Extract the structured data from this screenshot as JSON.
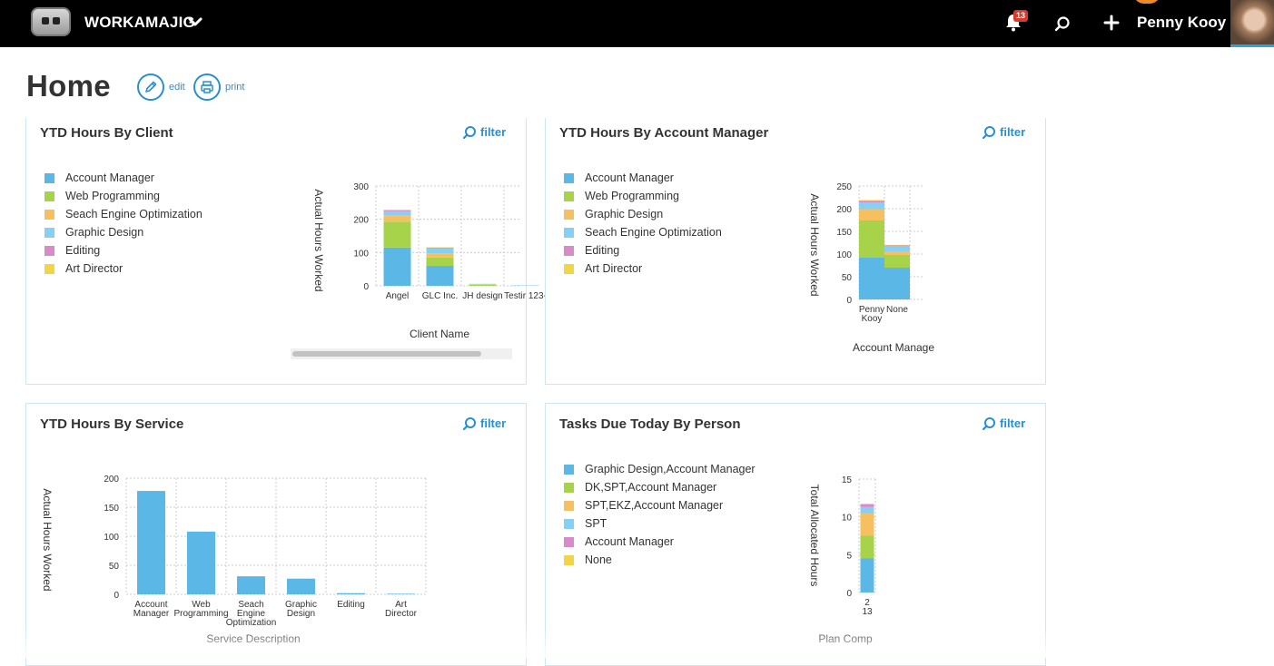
{
  "app": {
    "brand": "WORKAMAJIG",
    "notifications_count": "13",
    "user_name": "Penny Kooy"
  },
  "page": {
    "title": "Home",
    "edit_label": "edit",
    "print_label": "print"
  },
  "colors": {
    "accent": "#2a8fd0",
    "series": [
      "#5ab7e6",
      "#a6d34a",
      "#f6c060",
      "#86d0f5",
      "#d98ac9",
      "#f2d544"
    ]
  },
  "panels": {
    "client": {
      "title": "YTD Hours By Client",
      "filter_label": "filter",
      "legend": [
        "Account Manager",
        "Web Programming",
        "Seach Engine Optimization",
        "Graphic Design",
        "Editing",
        "Art Director"
      ]
    },
    "account_manager": {
      "title": "YTD Hours By Account Manager",
      "filter_label": "filter",
      "legend": [
        "Account Manager",
        "Web Programming",
        "Graphic Design",
        "Seach Engine Optimization",
        "Editing",
        "Art Director"
      ]
    },
    "service": {
      "title": "YTD Hours By Service",
      "filter_label": "filter"
    },
    "tasks": {
      "title": "Tasks Due Today By Person",
      "filter_label": "filter",
      "legend": [
        "Graphic Design,Account Manager",
        "DK,SPT,Account Manager",
        "SPT,EKZ,Account Manager",
        "SPT",
        "Account Manager",
        "None"
      ]
    }
  },
  "chart_data": [
    {
      "type": "bar",
      "stacked": true,
      "title": "YTD Hours By Client",
      "xlabel": "Client Name",
      "ylabel": "Actual Hours Worked",
      "ylim": [
        0,
        300
      ],
      "yticks": [
        "0",
        "100",
        "200",
        "300"
      ],
      "categories": [
        "Angel",
        "GLC Inc.",
        "JH design",
        "Testir 123-"
      ],
      "series": [
        {
          "name": "Account Manager",
          "values": [
            115,
            60,
            0,
            1
          ]
        },
        {
          "name": "Web Programming",
          "values": [
            78,
            25,
            3,
            0
          ]
        },
        {
          "name": "Seach Engine Optimization",
          "values": [
            18,
            13,
            2,
            0
          ]
        },
        {
          "name": "Graphic Design",
          "values": [
            13,
            15,
            1,
            0
          ]
        },
        {
          "name": "Editing",
          "values": [
            3,
            2,
            0,
            0
          ]
        },
        {
          "name": "Art Director",
          "values": [
            2,
            1,
            0,
            0
          ]
        }
      ]
    },
    {
      "type": "bar",
      "stacked": true,
      "title": "YTD Hours By Account Manager",
      "xlabel": "Account Manage",
      "ylabel": "Actual Hours Worked",
      "ylim": [
        0,
        250
      ],
      "yticks": [
        "0",
        "50",
        "100",
        "150",
        "200",
        "250"
      ],
      "categories": [
        "Penny Kooy",
        "None"
      ],
      "series": [
        {
          "name": "Account Manager",
          "values": [
            92,
            70
          ]
        },
        {
          "name": "Web Programming",
          "values": [
            82,
            28
          ]
        },
        {
          "name": "Graphic Design",
          "values": [
            25,
            8
          ]
        },
        {
          "name": "Seach Engine Optimization",
          "values": [
            15,
            12
          ]
        },
        {
          "name": "Editing",
          "values": [
            3,
            1
          ]
        },
        {
          "name": "Art Director",
          "values": [
            2,
            1
          ]
        }
      ]
    },
    {
      "type": "bar",
      "title": "YTD Hours By Service",
      "xlabel": "Service Description",
      "ylabel": "Actual Hours Worked",
      "ylim": [
        0,
        200
      ],
      "yticks": [
        "0",
        "50",
        "100",
        "150",
        "200"
      ],
      "categories": [
        "Account Manager",
        "Web Programming",
        "Seach Engine Optimization",
        "Graphic Design",
        "Editing",
        "Art Director"
      ],
      "values": [
        178,
        108,
        31,
        27,
        2,
        1
      ]
    },
    {
      "type": "bar",
      "stacked": true,
      "title": "Tasks Due Today By Person",
      "xlabel": "Plan Comp",
      "ylabel": "Total Allocated Hours",
      "ylim": [
        0,
        15
      ],
      "yticks": [
        "0",
        "5",
        "10",
        "15"
      ],
      "categories": [
        "2 13"
      ],
      "series": [
        {
          "name": "Graphic Design,Account Manager",
          "values": [
            4.5
          ]
        },
        {
          "name": "DK,SPT,Account Manager",
          "values": [
            3
          ]
        },
        {
          "name": "SPT,EKZ,Account Manager",
          "values": [
            3
          ]
        },
        {
          "name": "SPT",
          "values": [
            0.8
          ]
        },
        {
          "name": "Account Manager",
          "values": [
            0.4
          ]
        },
        {
          "name": "None",
          "values": [
            0
          ]
        }
      ]
    }
  ]
}
